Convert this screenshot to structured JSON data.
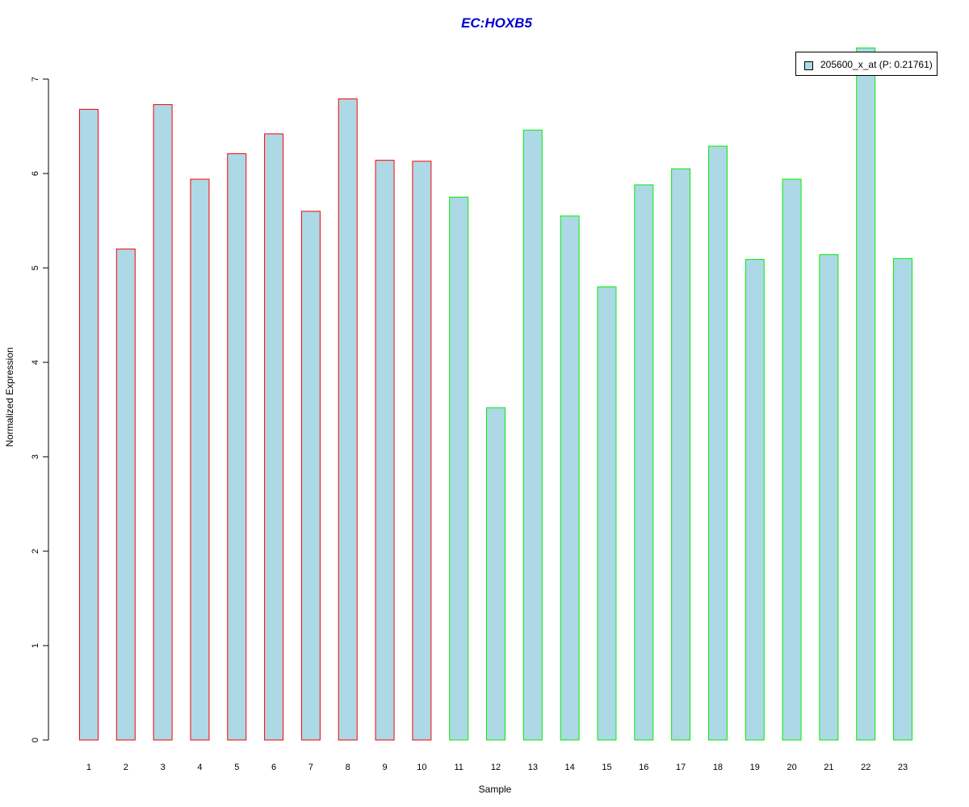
{
  "chart_data": {
    "type": "bar",
    "title": "EC:HOXB5",
    "xlabel": "Sample",
    "ylabel": "Normalized Expression",
    "categories": [
      "1",
      "2",
      "3",
      "4",
      "5",
      "6",
      "7",
      "8",
      "9",
      "10",
      "11",
      "12",
      "13",
      "14",
      "15",
      "16",
      "17",
      "18",
      "19",
      "20",
      "21",
      "22",
      "23"
    ],
    "series": [
      {
        "name": "205600_x_at (P: 0.21761)",
        "values": [
          6.68,
          5.2,
          6.73,
          5.94,
          6.21,
          6.42,
          5.6,
          6.79,
          6.14,
          6.13,
          5.75,
          3.52,
          6.46,
          5.55,
          4.8,
          5.88,
          6.05,
          6.29,
          5.09,
          5.94,
          5.14,
          7.33,
          5.1
        ]
      }
    ],
    "groups": [
      1,
      1,
      1,
      1,
      1,
      1,
      1,
      1,
      1,
      1,
      2,
      2,
      2,
      2,
      2,
      2,
      2,
      2,
      2,
      2,
      2,
      2,
      2
    ],
    "yticks": [
      "0",
      "1",
      "2",
      "3",
      "4",
      "5",
      "6",
      "7"
    ],
    "ylim": [
      0,
      7
    ],
    "grid": false,
    "legend_position": "top-right",
    "colors": {
      "bar_fill": "#add8e6",
      "group1_border": "#ff0000",
      "group2_border": "#00ee00",
      "title": "#0000cd",
      "axis": "#000000"
    }
  }
}
